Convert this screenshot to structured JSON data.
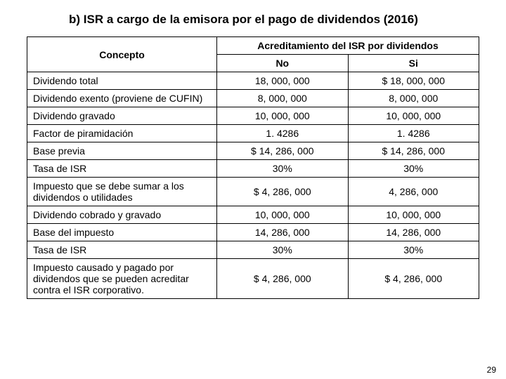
{
  "title": "b)  ISR a cargo de la emisora por el pago de dividendos (2016)",
  "header": {
    "concepto": "Concepto",
    "super": "Acreditamiento del ISR por dividendos",
    "no": "No",
    "si": "Si"
  },
  "rows": [
    {
      "concept": "Dividendo total",
      "no": "18, 000, 000",
      "si": "$  18, 000, 000"
    },
    {
      "concept": "Dividendo exento (proviene de CUFIN)",
      "no": "8, 000, 000",
      "si": "8, 000, 000"
    },
    {
      "concept": "Dividendo gravado",
      "no": "10, 000, 000",
      "si": "10, 000, 000"
    },
    {
      "concept": "Factor de piramidación",
      "no": "1. 4286",
      "si": "1. 4286"
    },
    {
      "concept": "Base previa",
      "no": "$ 14, 286, 000",
      "si": "$ 14, 286, 000"
    },
    {
      "concept": "Tasa de ISR",
      "no": "30%",
      "si": "30%"
    },
    {
      "concept": "Impuesto que se debe sumar a los dividendos o utilidades",
      "no": "$   4, 286, 000",
      "si": "4, 286, 000"
    },
    {
      "concept": "Dividendo cobrado y gravado",
      "no": "10, 000, 000",
      "si": "10, 000, 000"
    },
    {
      "concept": "Base del impuesto",
      "no": "14, 286, 000",
      "si": "14, 286, 000"
    },
    {
      "concept": "Tasa de ISR",
      "no": "30%",
      "si": "30%"
    },
    {
      "concept": "Impuesto causado y pagado por dividendos que se pueden acreditar contra el ISR corporativo.",
      "no": "$  4, 286, 000",
      "si": "$  4, 286, 000"
    }
  ],
  "page_number": "29"
}
